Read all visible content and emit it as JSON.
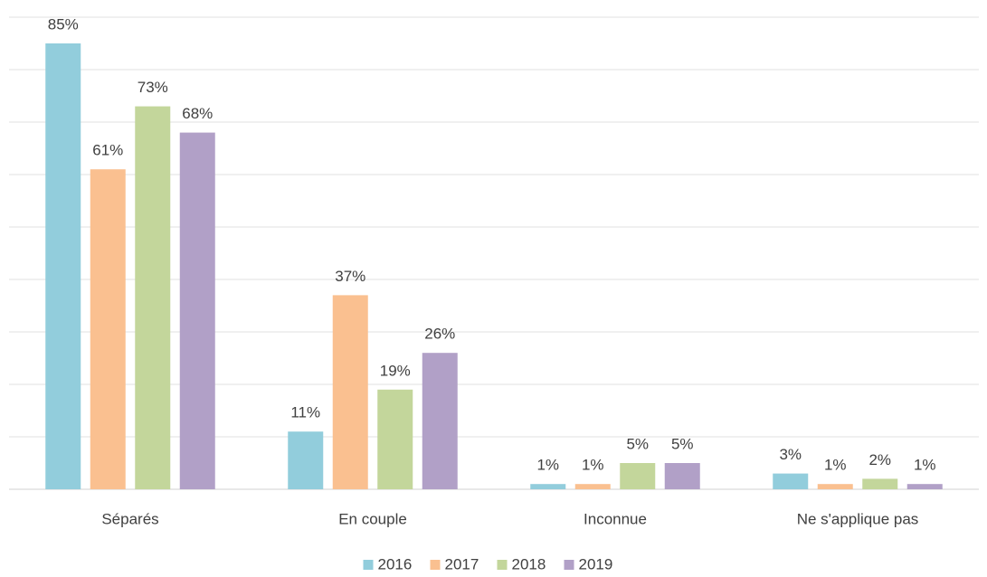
{
  "chart_data": {
    "type": "bar",
    "categories": [
      "Séparés",
      "En couple",
      "Inconnue",
      "Ne s'applique pas"
    ],
    "series": [
      {
        "name": "2016",
        "color": "#92cddc",
        "values": [
          85,
          11,
          1,
          3
        ],
        "value_labels": [
          "85%",
          "11%",
          "1%",
          "3%"
        ]
      },
      {
        "name": "2017",
        "color": "#fac090",
        "values": [
          61,
          37,
          1,
          1
        ],
        "value_labels": [
          "61%",
          "37%",
          "1%",
          "1%"
        ]
      },
      {
        "name": "2018",
        "color": "#c3d69b",
        "values": [
          73,
          19,
          5,
          2
        ],
        "value_labels": [
          "73%",
          "19%",
          "5%",
          "2%"
        ]
      },
      {
        "name": "2019",
        "color": "#b1a0c7",
        "values": [
          68,
          26,
          5,
          1
        ],
        "value_labels": [
          "68%",
          "26%",
          "5%",
          "1%"
        ]
      }
    ],
    "ylim": [
      0,
      90
    ],
    "yticks": [
      0,
      10,
      20,
      30,
      40,
      50,
      60,
      70,
      80,
      90
    ],
    "grid": true,
    "legend": "bottom"
  }
}
